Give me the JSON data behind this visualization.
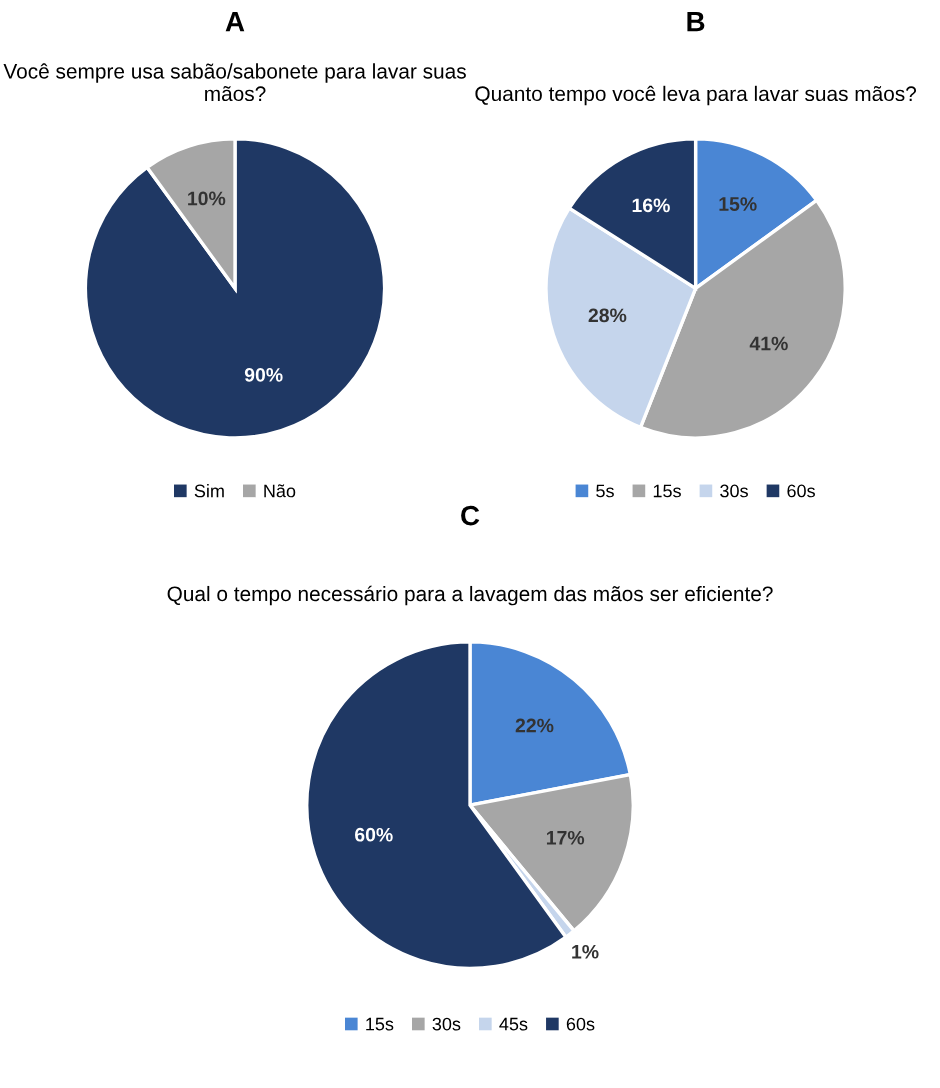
{
  "chart_data": [
    {
      "type": "pie",
      "title": "A",
      "subtitle": "Você sempre usa sabão/sabonete para lavar suas mãos?",
      "categories": [
        "Sim",
        "Não"
      ],
      "values": [
        90,
        10
      ],
      "value_labels": [
        "90%",
        "10%"
      ],
      "colors": [
        "#1f3864",
        "#a6a6a6"
      ],
      "legend": "bottom"
    },
    {
      "type": "pie",
      "title": "B",
      "subtitle": "Quanto tempo você leva para lavar suas mãos?",
      "categories": [
        "5s",
        "15s",
        "30s",
        "60s"
      ],
      "values": [
        15,
        41,
        28,
        16
      ],
      "value_labels": [
        "15%",
        "41%",
        "28%",
        "16%"
      ],
      "colors": [
        "#4a86d4",
        "#a6a6a6",
        "#c5d5ec",
        "#1f3864"
      ],
      "legend": "bottom"
    },
    {
      "type": "pie",
      "title": "C",
      "subtitle": "Qual o tempo necessário para a lavagem das mãos ser eficiente?",
      "categories": [
        "15s",
        "30s",
        "45s",
        "60s"
      ],
      "values": [
        22,
        17,
        1,
        60
      ],
      "value_labels": [
        "22%",
        "17%",
        "1%",
        "60%"
      ],
      "colors": [
        "#4a86d4",
        "#a6a6a6",
        "#c5d5ec",
        "#1f3864"
      ],
      "legend": "bottom"
    }
  ]
}
